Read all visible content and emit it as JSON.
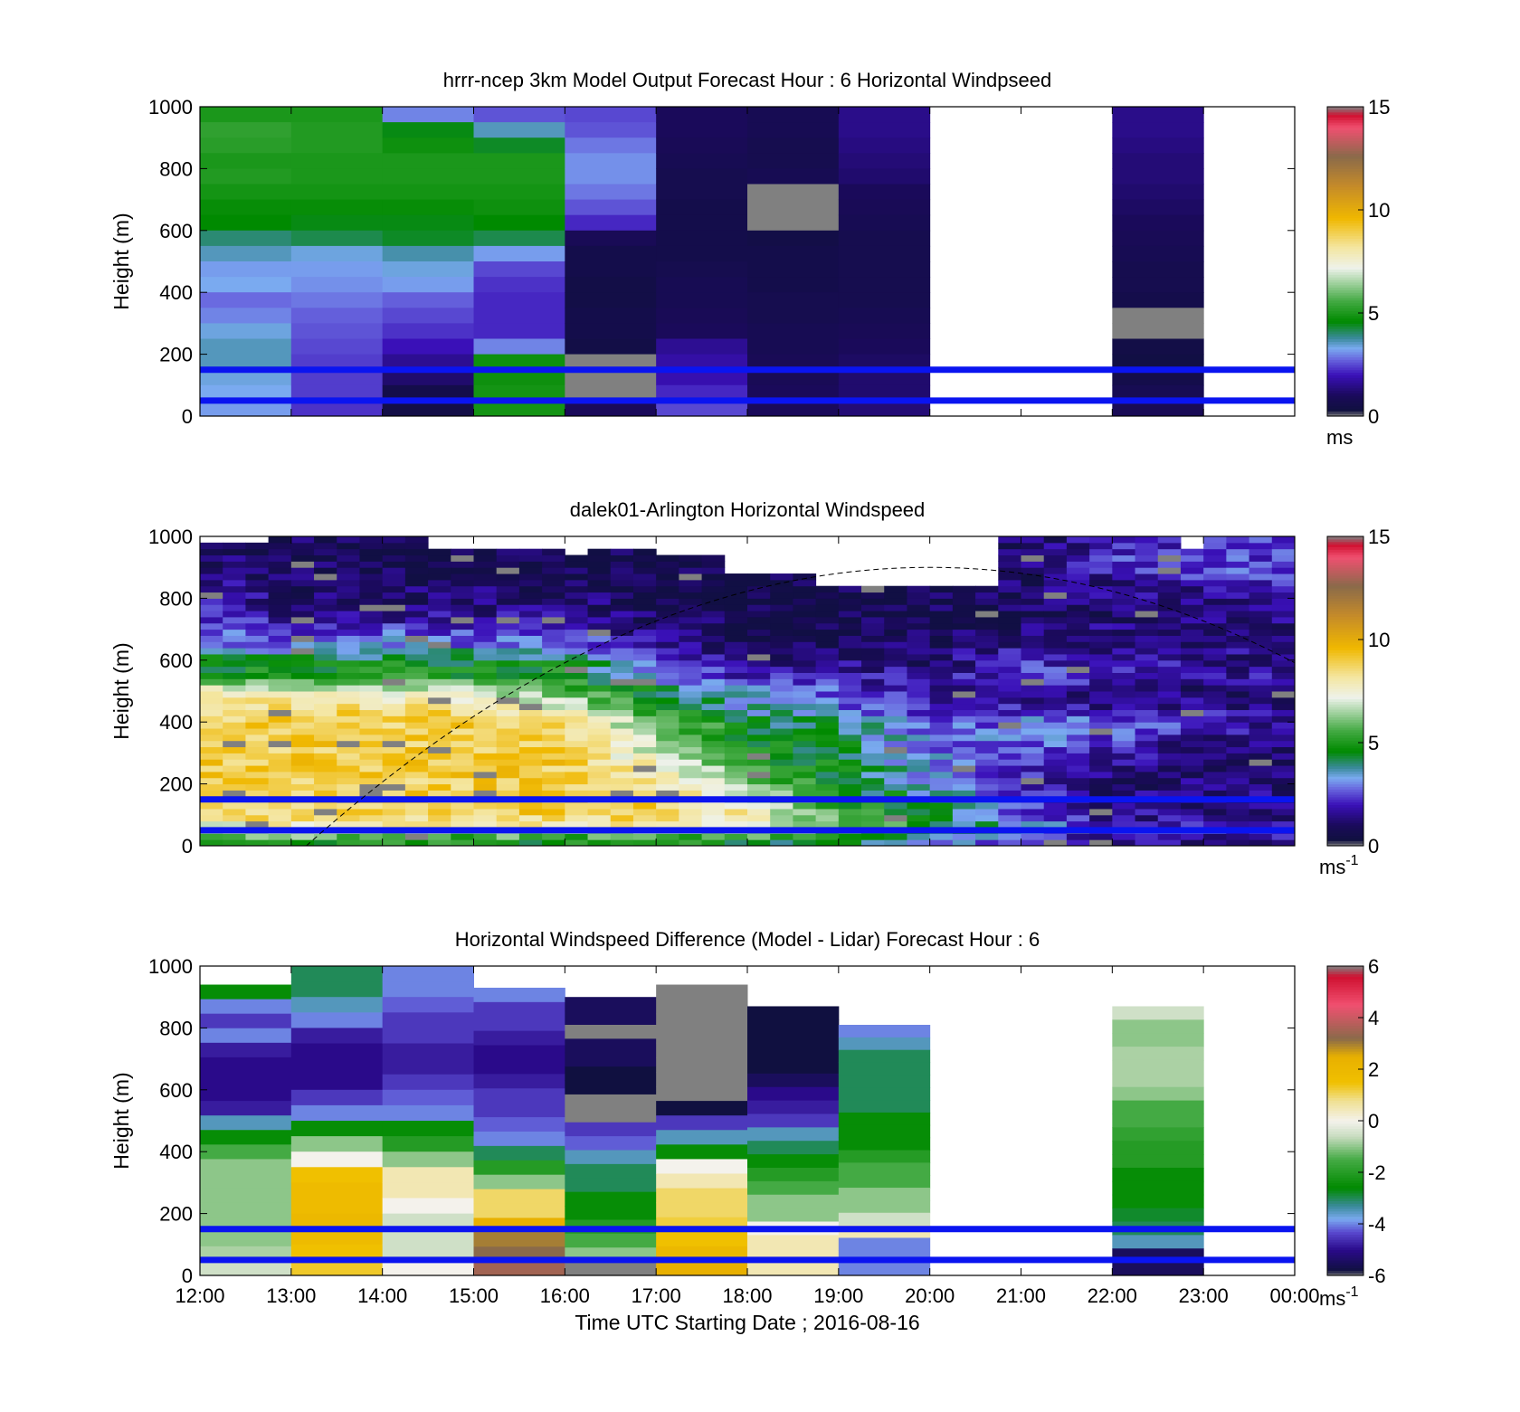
{
  "figure": {
    "xlabel": "Time UTC  Starting Date ; 2016-08-16",
    "x_ticks": [
      "12:00",
      "13:00",
      "14:00",
      "15:00",
      "16:00",
      "17:00",
      "18:00",
      "19:00",
      "20:00",
      "21:00",
      "22:00",
      "23:00",
      "00:00"
    ],
    "colors": {
      "reference_lines": "#0a14f0",
      "missing": "#808080",
      "axes": "#000000"
    }
  },
  "chart_data": [
    {
      "type": "heatmap",
      "title": "hrrr-ncep 3km Model Output   Forecast Hour : 6 Horizontal Windpseed",
      "ylabel": "Height (m)",
      "ylim": [
        0,
        1000
      ],
      "y_ticks": [
        "0",
        "200",
        "400",
        "600",
        "800",
        "1000"
      ],
      "xlim": [
        "12:00",
        "00:00"
      ],
      "grid": false,
      "reference_lines_m": [
        150,
        50
      ],
      "colorbar": {
        "range": [
          0,
          15
        ],
        "ticks": [
          "0",
          "5",
          "10",
          "15"
        ],
        "unit": "ms",
        "unit_exp": ""
      },
      "columns": [
        {
          "start": "12:00",
          "end": "13:00",
          "values": [
            5.0,
            5.3,
            5.2,
            5.0,
            5.1,
            4.9,
            4.7,
            4.6,
            4.0,
            3.6,
            3.2,
            3.3,
            2.8,
            3.0,
            3.4,
            3.6,
            3.6,
            3.4,
            3.3,
            3.2
          ]
        },
        {
          "start": "13:00",
          "end": "14:00",
          "values": [
            5.0,
            5.1,
            5.1,
            5.0,
            5.0,
            4.9,
            4.7,
            4.5,
            4.2,
            3.4,
            3.2,
            3.1,
            2.9,
            2.7,
            2.6,
            2.5,
            2.4,
            2.4,
            2.4,
            2.3
          ]
        },
        {
          "start": "14:00",
          "end": "15:00",
          "values": [
            3.0,
            4.5,
            4.8,
            5.0,
            5.0,
            4.9,
            4.7,
            4.5,
            4.4,
            3.7,
            3.4,
            3.2,
            2.7,
            2.5,
            2.3,
            2.0,
            1.6,
            1.2,
            0.6,
            0.5
          ]
        },
        {
          "start": "15:00",
          "end": "16:00",
          "values": [
            2.6,
            3.6,
            4.4,
            5.0,
            5.0,
            4.9,
            4.8,
            4.6,
            4.2,
            3.2,
            2.5,
            2.3,
            2.2,
            2.2,
            2.2,
            3.0,
            4.8,
            4.8,
            4.9,
            4.9
          ]
        },
        {
          "start": "16:00",
          "end": "17:00",
          "values": [
            2.5,
            2.6,
            2.9,
            3.1,
            3.1,
            2.9,
            2.6,
            2.2,
            0.9,
            0.6,
            0.6,
            0.5,
            0.5,
            0.6,
            0.6,
            0.5,
            null,
            null,
            null,
            1.0
          ]
        },
        {
          "start": "17:00",
          "end": "18:00",
          "values": [
            1.0,
            1.0,
            0.9,
            0.8,
            0.7,
            0.7,
            0.6,
            0.6,
            0.6,
            0.6,
            0.7,
            0.8,
            0.8,
            0.9,
            1.0,
            1.6,
            1.8,
            1.9,
            2.2,
            2.5
          ]
        },
        {
          "start": "18:00",
          "end": "19:00",
          "values": [
            0.8,
            0.8,
            0.7,
            0.7,
            0.8,
            null,
            null,
            null,
            0.5,
            0.6,
            0.6,
            0.6,
            0.7,
            0.7,
            0.8,
            0.8,
            0.9,
            0.9,
            1.0,
            1.0
          ]
        },
        {
          "start": "19:00",
          "end": "20:00",
          "values": [
            1.5,
            1.5,
            1.4,
            1.3,
            1.2,
            1.0,
            0.9,
            0.8,
            0.7,
            0.7,
            0.7,
            0.7,
            0.7,
            0.8,
            0.9,
            1.0,
            1.1,
            1.2,
            1.2,
            1.3
          ]
        },
        {
          "start": "22:00",
          "end": "23:00",
          "values": [
            1.5,
            1.5,
            1.4,
            1.3,
            1.3,
            1.2,
            1.1,
            1.0,
            0.9,
            0.8,
            0.7,
            0.7,
            0.6,
            null,
            null,
            0.5,
            0.4,
            0.6,
            0.8,
            0.9
          ]
        }
      ]
    },
    {
      "type": "heatmap",
      "title": "dalek01-Arlington  Horizontal Windspeed",
      "ylabel": "Height (m)",
      "ylim": [
        0,
        1000
      ],
      "y_ticks": [
        "0",
        "200",
        "400",
        "600",
        "800",
        "1000"
      ],
      "xlim": [
        "12:00",
        "00:00"
      ],
      "grid": false,
      "reference_lines_m": [
        150,
        50
      ],
      "colorbar": {
        "range": [
          0,
          15
        ],
        "ticks": [
          "0",
          "5",
          "10",
          "15"
        ],
        "unit": "ms",
        "unit_exp": "-1"
      },
      "valid_top_m": [
        980,
        980,
        980,
        1000,
        1000,
        1000,
        1000,
        1000,
        1000,
        1000,
        960,
        960,
        960,
        960,
        960,
        950,
        940,
        960,
        960,
        950,
        930,
        930,
        930,
        870,
        870,
        870,
        870,
        830,
        830,
        830,
        830,
        830,
        830,
        830,
        830,
        1000,
        1000,
        1000,
        1000,
        1000,
        1000,
        1000,
        1000,
        960,
        1000,
        1000,
        1000,
        1000
      ],
      "column_width_min": 15,
      "profile_depth_m": [
        0,
        40,
        60,
        100,
        200,
        300,
        400,
        450,
        500,
        550,
        600,
        650,
        700,
        750,
        800,
        850,
        900,
        950,
        1000
      ],
      "profiles": [
        [
          4.5,
          6.5,
          7.0,
          8.5,
          9.0,
          9.0,
          9.0,
          8.5,
          8.0,
          5.0,
          4.5,
          3.0,
          2.5,
          2.0,
          2.0,
          1.6,
          1.4,
          1.4,
          1.4
        ],
        [
          4.0,
          7.0,
          7.5,
          9.0,
          9.0,
          9.0,
          9.0,
          8.5,
          7.5,
          5.0,
          4.5,
          3.0,
          2.5,
          1.5,
          1.2,
          1.0,
          0.9,
          0.9,
          0.9
        ],
        [
          4.5,
          6.0,
          7.5,
          9.0,
          9.0,
          9.0,
          9.0,
          8.5,
          7.5,
          5.0,
          4.5,
          3.0,
          2.5,
          1.5,
          1.2,
          1.0,
          0.8,
          0.7,
          0.7
        ],
        [
          4.5,
          6.0,
          7.5,
          9.0,
          9.0,
          9.0,
          9.0,
          8.5,
          6.5,
          5.0,
          4.5,
          3.0,
          2.5,
          1.5,
          1.2,
          1.0,
          0.8,
          0.7,
          0.7
        ],
        [
          4.5,
          6.0,
          7.5,
          9.0,
          9.0,
          9.0,
          8.5,
          7.0,
          6.0,
          5.0,
          4.5,
          3.0,
          2.5,
          1.5,
          1.2,
          1.0,
          0.8,
          0.7,
          0.7
        ],
        [
          4.5,
          6.0,
          7.5,
          9.0,
          8.5,
          7.0,
          6.0,
          5.0,
          4.5,
          3.0,
          2.5,
          1.5,
          1.2,
          1.0,
          0.8,
          0.7,
          0.7,
          0.7,
          0.7
        ],
        [
          4.0,
          6.0,
          7.0,
          8.0,
          6.0,
          5.0,
          4.5,
          3.5,
          3.0,
          2.0,
          1.5,
          1.0,
          0.8,
          0.7,
          0.7,
          0.7,
          0.7,
          0.7,
          0.7
        ],
        [
          4.0,
          5.5,
          6.0,
          5.5,
          4.5,
          4.5,
          4.0,
          3.0,
          2.5,
          2.0,
          1.5,
          1.0,
          0.8,
          0.7,
          0.7,
          0.7,
          0.7,
          0.7,
          0.7
        ],
        [
          3.0,
          4.5,
          5.0,
          4.5,
          3.5,
          3.0,
          2.5,
          2.0,
          2.0,
          1.5,
          1.2,
          1.0,
          0.8,
          0.7,
          0.7,
          0.7,
          0.7,
          0.7,
          0.7
        ],
        [
          2.0,
          3.0,
          3.5,
          2.5,
          2.0,
          2.5,
          3.0,
          2.0,
          1.5,
          2.5,
          2.0,
          1.5,
          1.2,
          1.0,
          1.0,
          1.0,
          1.0,
          1.0,
          1.0
        ],
        [
          1.5,
          2.0,
          2.5,
          1.5,
          1.2,
          2.0,
          3.0,
          1.5,
          1.2,
          2.5,
          2.0,
          1.5,
          1.5,
          1.0,
          1.5,
          1.5,
          2.5,
          2.0,
          2.0
        ],
        [
          1.5,
          2.0,
          2.5,
          1.5,
          1.2,
          1.0,
          2.5,
          1.5,
          1.2,
          2.0,
          1.5,
          1.5,
          1.5,
          1.0,
          1.5,
          2.0,
          2.5,
          2.5,
          2.5
        ],
        [
          1.5,
          2.0,
          2.0,
          1.5,
          1.2,
          1.0,
          1.5,
          1.2,
          1.0,
          1.5,
          1.5,
          1.2,
          1.2,
          1.5,
          2.0,
          2.0,
          2.5,
          2.5,
          2.5
        ]
      ]
    },
    {
      "type": "heatmap",
      "title": "Horizontal Windspeed Difference (Model - Lidar) Forecast Hour : 6",
      "xlabel": "Time UTC  Starting Date ; 2016-08-16",
      "ylabel": "Height (m)",
      "ylim": [
        0,
        1000
      ],
      "y_ticks": [
        "0",
        "200",
        "400",
        "600",
        "800",
        "1000"
      ],
      "xlim": [
        "12:00",
        "00:00"
      ],
      "grid": false,
      "reference_lines_m": [
        150,
        50
      ],
      "colorbar": {
        "range": [
          -6,
          6
        ],
        "ticks": [
          "-6",
          "-4",
          "-2",
          "0",
          "2",
          "4",
          "6"
        ],
        "unit": "ms",
        "unit_exp": "-1"
      },
      "columns": [
        {
          "start": "12:00",
          "end": "13:00",
          "top_m": 940,
          "values": [
            -2.5,
            -4.0,
            -4.5,
            -4.0,
            -4.8,
            -5.0,
            -5.0,
            -5.0,
            -4.8,
            -3.5,
            -2.5,
            -1.5,
            -1.0,
            -1.0,
            -1.0,
            -1.0,
            -1.0,
            -1.0,
            -0.8,
            -0.5
          ]
        },
        {
          "start": "13:00",
          "end": "14:00",
          "top_m": 1000,
          "values": [
            -3.0,
            -3.0,
            -3.5,
            -4.0,
            -4.8,
            -5.0,
            -5.0,
            -5.0,
            -4.5,
            -4.0,
            -2.5,
            -1.0,
            0.0,
            1.5,
            1.8,
            1.8,
            2.0,
            1.8,
            1.5,
            1.3
          ]
        },
        {
          "start": "14:00",
          "end": "15:00",
          "top_m": 1000,
          "values": [
            -4.0,
            -4.0,
            -4.2,
            -4.5,
            -4.5,
            -4.8,
            -4.8,
            -4.5,
            -4.2,
            -4.0,
            -2.5,
            -2.0,
            -1.0,
            0.5,
            0.5,
            0.0,
            -0.5,
            -0.5,
            -0.5,
            0.0
          ]
        },
        {
          "start": "15:00",
          "end": "16:00",
          "top_m": 930,
          "values": [
            -4.0,
            -4.5,
            -4.5,
            -4.8,
            -5.0,
            -5.0,
            -4.8,
            -4.5,
            -4.5,
            -4.2,
            -4.0,
            -3.0,
            -2.0,
            -1.0,
            1.0,
            1.0,
            2.5,
            3.0,
            3.2,
            3.5
          ]
        },
        {
          "start": "16:00",
          "end": "17:00",
          "top_m": 900,
          "values": [
            -5.5,
            -5.5,
            null,
            -5.5,
            -5.5,
            -5.8,
            -5.8,
            null,
            null,
            -4.5,
            -4.2,
            -3.5,
            -3.0,
            -3.0,
            -2.5,
            -2.5,
            -2.0,
            -1.5,
            -1.0,
            null
          ]
        },
        {
          "start": "17:00",
          "end": "18:00",
          "top_m": 940,
          "values": [
            null,
            null,
            null,
            null,
            null,
            null,
            null,
            null,
            -5.8,
            -4.5,
            -3.5,
            -2.5,
            0.0,
            0.5,
            1.0,
            1.0,
            1.2,
            1.5,
            2.0,
            2.5
          ]
        },
        {
          "start": "18:00",
          "end": "19:00",
          "top_m": 870,
          "values": [
            -5.8,
            -5.8,
            -5.8,
            -5.8,
            -5.8,
            -5.5,
            -5.0,
            -4.8,
            -4.5,
            -3.5,
            -3.0,
            -2.5,
            -2.0,
            -1.5,
            -1.0,
            -1.0,
            0.0,
            0.5,
            0.5,
            0.5
          ]
        },
        {
          "start": "19:00",
          "end": "20:00",
          "top_m": 810,
          "values": [
            -4.0,
            -3.5,
            -3.0,
            -3.0,
            -3.0,
            -3.0,
            -3.0,
            -2.5,
            -2.5,
            -2.5,
            -2.0,
            -1.5,
            -1.5,
            -1.0,
            -1.0,
            -0.5,
            0.5,
            -4.0,
            -4.0,
            -4.0
          ]
        },
        {
          "start": "22:00",
          "end": "23:00",
          "top_m": 870,
          "values": [
            -0.5,
            -1.0,
            -1.0,
            -0.8,
            -0.8,
            -0.8,
            -1.0,
            -1.5,
            -1.5,
            -1.8,
            -2.0,
            -2.0,
            -2.5,
            -2.5,
            -2.5,
            -2.8,
            -3.0,
            -3.5,
            -5.5,
            -5.5
          ]
        }
      ]
    }
  ]
}
